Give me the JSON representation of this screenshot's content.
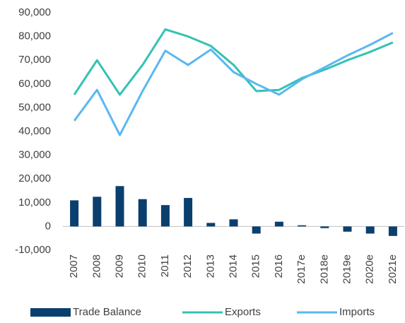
{
  "chart_data": {
    "type": "combo",
    "categories": [
      "2007",
      "2008",
      "2009",
      "2010",
      "2011",
      "2012",
      "2013",
      "2014",
      "2015",
      "2016",
      "2017e",
      "2018e",
      "2019e",
      "2020e",
      "2021e"
    ],
    "series": [
      {
        "name": "Trade Balance",
        "type": "bar",
        "color": "#0b3f6e",
        "values": [
          11000,
          12500,
          17000,
          11500,
          9000,
          12000,
          1500,
          3000,
          -3000,
          2000,
          500,
          -700,
          -2200,
          -3000,
          -4000
        ]
      },
      {
        "name": "Exports",
        "type": "line",
        "color": "#33c2b4",
        "values": [
          55500,
          70000,
          55500,
          68000,
          83000,
          80000,
          76000,
          68000,
          57000,
          57500,
          62500,
          66000,
          70000,
          73500,
          77500
        ]
      },
      {
        "name": "Imports",
        "type": "line",
        "color": "#5ab7f3",
        "values": [
          44500,
          57500,
          38500,
          57000,
          74000,
          68000,
          74500,
          65000,
          60000,
          55500,
          62000,
          67000,
          72000,
          76500,
          81500
        ]
      }
    ],
    "ylim": [
      -10000,
      90000
    ],
    "yticks": [
      {
        "value": -10000,
        "label": "-10,000"
      },
      0,
      {
        "value": 10000,
        "label": "10,000"
      },
      {
        "value": 20000,
        "label": "20,000"
      },
      {
        "value": 30000,
        "label": "30,000"
      },
      {
        "value": 40000,
        "label": "40,000"
      },
      {
        "value": 50000,
        "label": "50,000"
      },
      {
        "value": 60000,
        "label": "60,000"
      },
      {
        "value": 70000,
        "label": "70,000"
      },
      {
        "value": 80000,
        "label": "80,000"
      },
      {
        "value": 90000,
        "label": "90,000"
      }
    ],
    "grid": false,
    "legend": "bottom"
  }
}
